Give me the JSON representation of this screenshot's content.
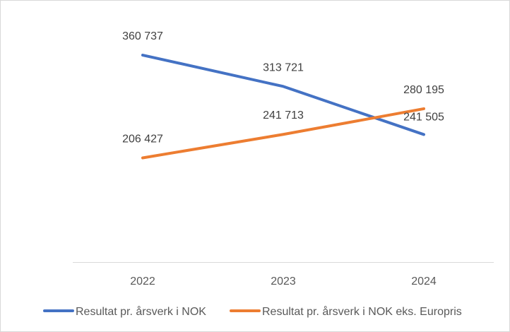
{
  "chart_data": {
    "type": "line",
    "categories": [
      "2022",
      "2023",
      "2024"
    ],
    "series": [
      {
        "name": "Resultat pr. årsverk i NOK",
        "values": [
          360737,
          313721,
          241505
        ],
        "labels": [
          "360 737",
          "313 721",
          "241 505"
        ],
        "color": "#4472C4"
      },
      {
        "name": "Resultat pr. årsverk i NOK eks. Europris",
        "values": [
          206427,
          241713,
          280195
        ],
        "labels": [
          "206 427",
          "241 713",
          "280 195"
        ],
        "color": "#ED7D31"
      }
    ],
    "title": "",
    "xlabel": "",
    "ylabel": "",
    "ylim": [
      50000,
      400000
    ],
    "grid": false,
    "legend": "bottom"
  }
}
